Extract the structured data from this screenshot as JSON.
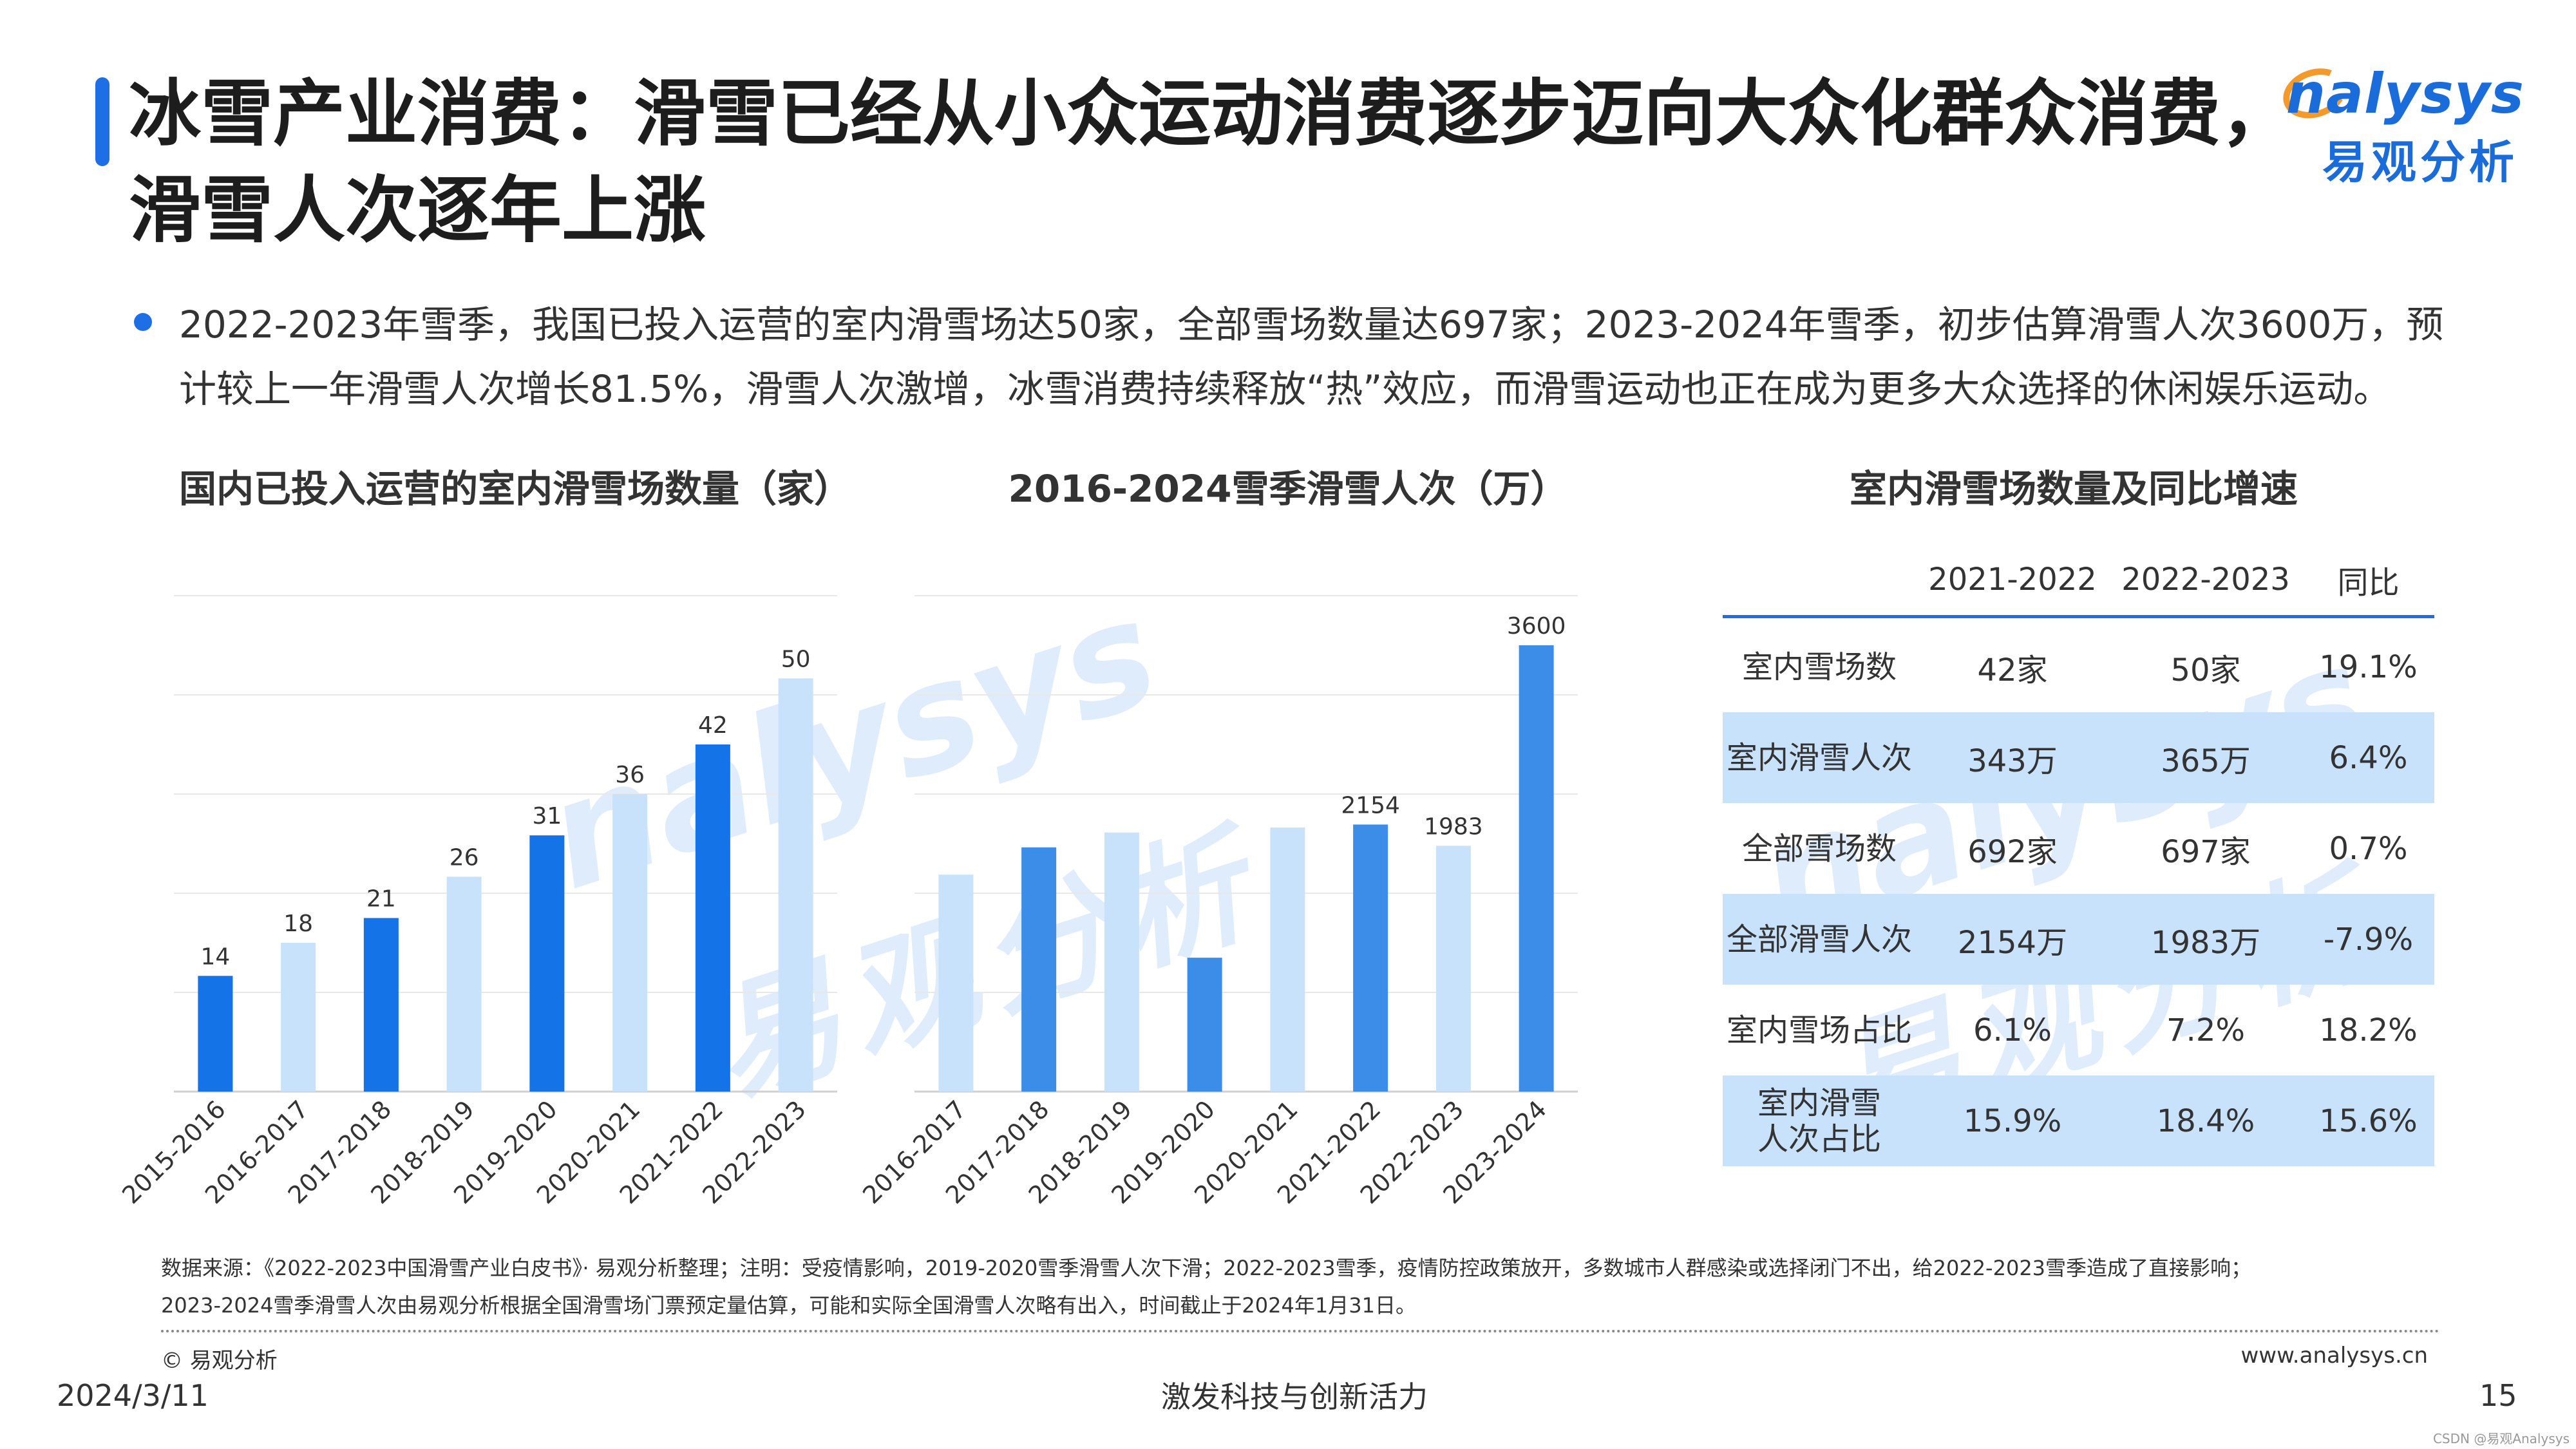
{
  "title": "冰雪产业消费：滑雪已经从小众运动消费逐步迈向大众化群众消费，滑雪人次逐年上涨",
  "logo": {
    "en": "nalysys",
    "cn": "易观分析"
  },
  "watermark": {
    "en": "nalysys",
    "cn": "易观分析"
  },
  "bullet": "2022-2023年雪季，我国已投入运营的室内滑雪场达50家，全部雪场数量达697家；2023-2024年雪季，初步估算滑雪人次3600万，预计较上一年滑雪人次增长81.5%，滑雪人次激增，冰雪消费持续释放“热”效应，而滑雪运动也正在成为更多大众选择的休闲娱乐运动。",
  "colors": {
    "dark": "#1473e6",
    "light": "#c9e2fb",
    "mid": "#3b8de8",
    "accent": "#1e6fe6"
  },
  "chart_data": [
    {
      "type": "bar",
      "title": "国内已投入运营的室内滑雪场数量（家）",
      "categories": [
        "2015-2016",
        "2016-2017",
        "2017-2018",
        "2018-2019",
        "2019-2020",
        "2020-2021",
        "2021-2022",
        "2022-2023"
      ],
      "values": [
        14,
        18,
        21,
        26,
        31,
        36,
        42,
        50
      ],
      "bar_colors": [
        "dark",
        "light",
        "dark",
        "light",
        "dark",
        "light",
        "dark",
        "light"
      ],
      "ylim": [
        0,
        60
      ],
      "grid": true
    },
    {
      "type": "bar",
      "title": "2016-2024雪季滑雪人次（万）",
      "categories": [
        "2016-2017",
        "2017-2018",
        "2018-2019",
        "2019-2020",
        "2020-2021",
        "2021-2022",
        "2022-2023",
        "2023-2024"
      ],
      "values": [
        1750,
        1970,
        2090,
        1080,
        2130,
        2154,
        1983,
        3600
      ],
      "labels": [
        "",
        "",
        "",
        "",
        "",
        "2154",
        "1983",
        "3600"
      ],
      "bar_colors": [
        "light",
        "mid",
        "light",
        "mid",
        "light",
        "mid",
        "light",
        "mid"
      ],
      "ylim": [
        0,
        4000
      ],
      "grid": true
    },
    {
      "type": "table",
      "title": "室内滑雪场数量及同比增速",
      "header": [
        "",
        "2021-2022",
        "2022-2023",
        "同比"
      ],
      "rows": [
        [
          "室内雪场数",
          "42家",
          "50家",
          "19.1%"
        ],
        [
          "室内滑雪人次",
          "343万",
          "365万",
          "6.4%"
        ],
        [
          "全部雪场数",
          "692家",
          "697家",
          "0.7%"
        ],
        [
          "全部滑雪人次",
          "2154万",
          "1983万",
          "-7.9%"
        ],
        [
          "室内雪场占比",
          "6.1%",
          "7.2%",
          "18.2%"
        ],
        [
          "室内滑雪人次占比",
          "15.9%",
          "18.4%",
          "15.6%"
        ]
      ]
    }
  ],
  "footer": {
    "source_line1": "数据来源：《2022-2023中国滑雪产业白皮书》· 易观分析整理；注明：受疫情影响，2019-2020雪季滑雪人次下滑；2022-2023雪季，疫情防控政策放开，多数城市人群感染或选择闭门不出，给2022-2023雪季造成了直接影响；",
    "source_line2": "2023-2024雪季滑雪人次由易观分析根据全国滑雪场门票预定量估算，可能和实际全国滑雪人次略有出入，时间截止于2024年1月31日。",
    "copyright": "© 易观分析",
    "website": "www.analysys.cn",
    "date": "2024/3/11",
    "slogan": "激发科技与创新活力",
    "page": "15",
    "csdn": "CSDN @易观Analysys"
  }
}
